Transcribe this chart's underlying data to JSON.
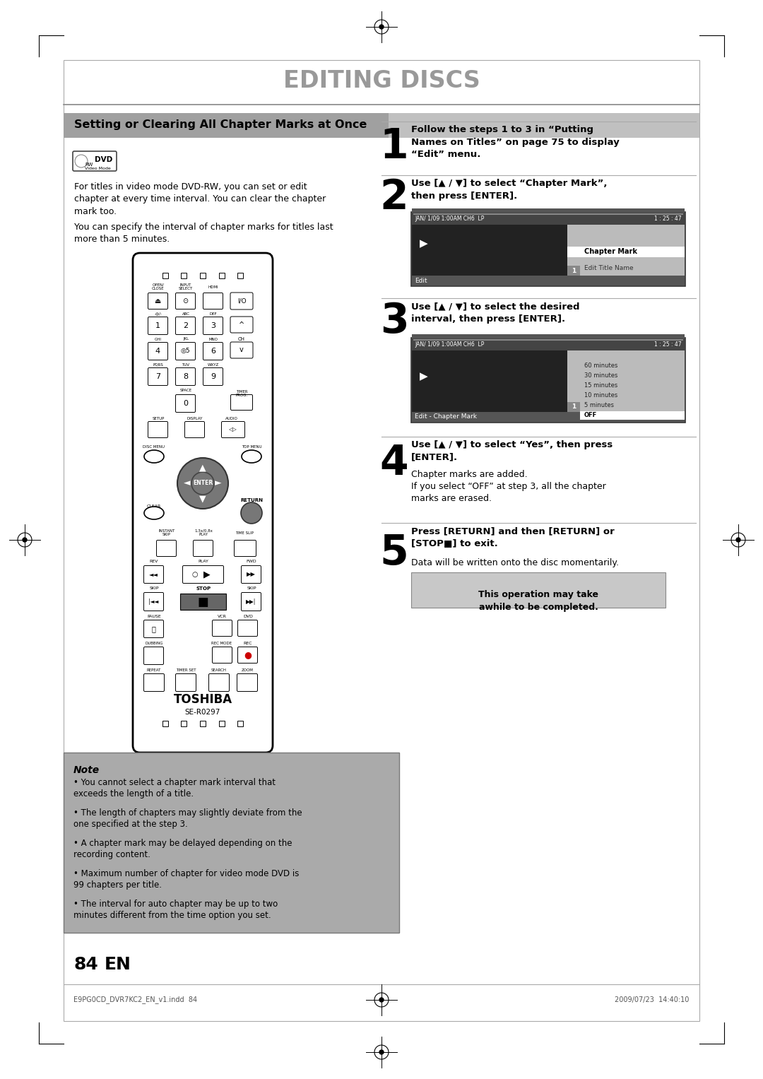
{
  "page_title": "EDITING DISCS",
  "section_title": "Setting or Clearing All Chapter Marks at Once",
  "intro_text1": "For titles in video mode DVD-RW, you can set or edit\nchapter at every time interval. You can clear the chapter\nmark too.",
  "intro_text2": "You can specify the interval of chapter marks for titles last\nmore than 5 minutes.",
  "step1_bold": "Follow the steps 1 to 3 in “Putting\nNames on Titles” on page 75 to display\n“Edit” menu.",
  "step2_bold": "Use [▲ / ▼] to select “Chapter Mark”,\nthen press [ENTER].",
  "step3_bold": "Use [▲ / ▼] to select the desired\ninterval, then press [ENTER].",
  "step4_bold": "Use [▲ / ▼] to select “Yes”, then press\n[ENTER].",
  "step4_text": "Chapter marks are added.\nIf you select “OFF” at step 3, all the chapter\nmarks are erased.",
  "step5_bold": "Press [RETURN] and then [RETURN] or\n[STOP■] to exit.",
  "step5_text": "Data will be written onto the disc momentarily.",
  "warning_text": "This operation may take\nawhile to be completed.",
  "note_title": "Note",
  "note_bullets": [
    "You cannot select a chapter mark interval that\nexceeds the length of a title.",
    "The length of chapters may slightly deviate from the\none specified at the step 3.",
    "A chapter mark may be delayed depending on the\nrecording content.",
    "Maximum number of chapter for video mode DVD is\n99 chapters per title.",
    "The interval for auto chapter may be up to two\nminutes different from the time option you set."
  ],
  "page_number": "84",
  "page_lang": "EN",
  "footer_left": "E9PG0CD_DVR7KC2_EN_v1.indd  84",
  "footer_right": "2009/07/23  14:40:10",
  "bg_color": "#ffffff",
  "section_bg_left": "#bbbbbb",
  "section_bg_right": "#cccccc",
  "note_bg": "#aaaaaa",
  "warning_bg": "#bbbbbb",
  "text_color": "#000000",
  "title_color": "#999999"
}
